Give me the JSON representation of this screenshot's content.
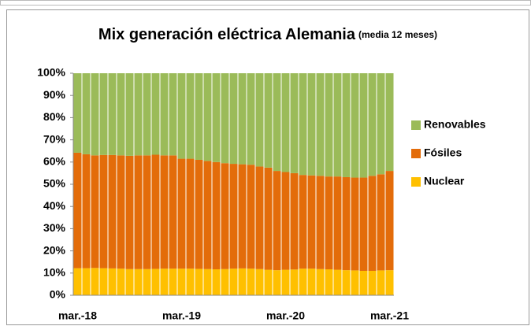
{
  "chart_data": {
    "type": "stacked_bar",
    "title": "Mix generación eléctrica Alemania",
    "subtitle": "(media 12 meses)",
    "categories": [
      "mar.-18",
      null,
      null,
      null,
      null,
      null,
      null,
      null,
      null,
      null,
      null,
      null,
      "mar.-19",
      null,
      null,
      null,
      null,
      null,
      null,
      null,
      null,
      null,
      null,
      null,
      "mar.-20",
      null,
      null,
      null,
      null,
      null,
      null,
      null,
      null,
      null,
      null,
      null,
      "mar.-21"
    ],
    "series": [
      {
        "name": "Nuclear",
        "color": "#ffc000",
        "values": [
          12.2,
          12.2,
          12.3,
          12.2,
          12.1,
          12.0,
          11.8,
          11.8,
          11.8,
          11.9,
          12.0,
          12.0,
          12.0,
          12.0,
          11.9,
          11.8,
          11.7,
          11.8,
          12.0,
          12.1,
          12.0,
          11.8,
          11.5,
          11.3,
          11.5,
          11.6,
          12.0,
          12.0,
          11.8,
          11.7,
          11.5,
          11.3,
          11.2,
          11.0,
          11.0,
          11.2,
          11.3
        ]
      },
      {
        "name": "Fósiles",
        "color": "#e36c0a",
        "values": [
          52.0,
          51.3,
          50.7,
          51.0,
          51.1,
          51.0,
          51.0,
          51.2,
          51.2,
          51.4,
          51.0,
          51.0,
          49.5,
          49.5,
          49.1,
          48.7,
          48.3,
          47.7,
          47.2,
          46.9,
          46.8,
          46.2,
          46.0,
          44.7,
          44.0,
          43.4,
          42.2,
          42.0,
          42.0,
          41.8,
          42.0,
          41.9,
          41.8,
          42.0,
          42.8,
          43.3,
          44.7
        ]
      },
      {
        "name": "Renovables",
        "color": "#9bbb59",
        "values": [
          35.8,
          36.5,
          37.0,
          36.8,
          36.8,
          37.0,
          37.2,
          37.0,
          37.0,
          36.7,
          37.0,
          37.0,
          38.5,
          38.5,
          39.0,
          39.5,
          40.0,
          40.5,
          40.8,
          41.0,
          41.2,
          42.0,
          42.5,
          44.0,
          44.5,
          45.0,
          45.8,
          46.0,
          46.2,
          46.5,
          46.5,
          46.8,
          47.0,
          47.0,
          46.2,
          45.5,
          44.0
        ]
      }
    ],
    "ylim": [
      0,
      100
    ],
    "yticks": [
      {
        "value": 0,
        "label": "0%"
      },
      {
        "value": 10,
        "label": "10%"
      },
      {
        "value": 20,
        "label": "20%"
      },
      {
        "value": 30,
        "label": "30%"
      },
      {
        "value": 40,
        "label": "40%"
      },
      {
        "value": 50,
        "label": "50%"
      },
      {
        "value": 60,
        "label": "60%"
      },
      {
        "value": 70,
        "label": "70%"
      },
      {
        "value": 80,
        "label": "80%"
      },
      {
        "value": 90,
        "label": "90%"
      },
      {
        "value": 100,
        "label": "100%"
      }
    ],
    "legend": "right"
  }
}
